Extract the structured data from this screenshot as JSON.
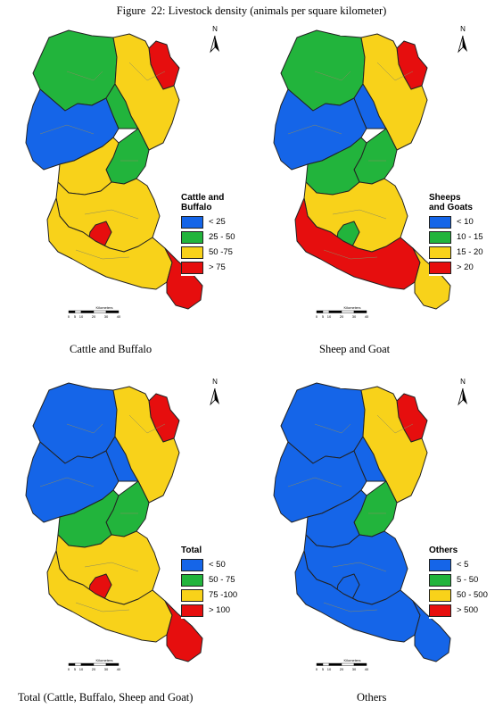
{
  "figure_title": "Figure  22: Livestock density (animals per square kilometer)",
  "colors": {
    "blue": "#1565e8",
    "green": "#22b43c",
    "yellow": "#f8d21a",
    "red": "#e60e0e",
    "outline": "#222222",
    "inner": "#8a8a60"
  },
  "north_label": "N",
  "scale": {
    "unit_label": "Kilometers",
    "ticks": [
      "0",
      "5",
      "10",
      "20",
      "30",
      "40"
    ]
  },
  "panels": [
    {
      "caption": "Cattle and Buffalo",
      "legend": {
        "title": "Cattle and Buffalo",
        "items": [
          {
            "label": "< 25",
            "color": "blue"
          },
          {
            "label": "25 - 50",
            "color": "green"
          },
          {
            "label": "50 -75",
            "color": "yellow"
          },
          {
            "label": "> 75",
            "color": "red"
          }
        ]
      },
      "regions": [
        "green",
        "red",
        "blue",
        "green",
        "yellow",
        "green",
        "yellow",
        "yellow",
        "red",
        "yellow",
        "red"
      ]
    },
    {
      "caption": "Sheep and Goat",
      "legend": {
        "title": "Sheeps and Goats",
        "items": [
          {
            "label": "< 10",
            "color": "blue"
          },
          {
            "label": "10 - 15",
            "color": "green"
          },
          {
            "label": "15 - 20",
            "color": "yellow"
          },
          {
            "label": "> 20",
            "color": "red"
          }
        ]
      },
      "regions": [
        "green",
        "red",
        "blue",
        "blue",
        "yellow",
        "green",
        "green",
        "yellow",
        "green",
        "red",
        "yellow"
      ]
    },
    {
      "caption": "Total (Cattle, Buffalo, Sheep and Goat)",
      "legend": {
        "title": "Total",
        "items": [
          {
            "label": "< 50",
            "color": "blue"
          },
          {
            "label": "50 - 75",
            "color": "green"
          },
          {
            "label": "75 -100",
            "color": "yellow"
          },
          {
            "label": "> 100",
            "color": "red"
          }
        ]
      },
      "regions": [
        "blue",
        "red",
        "blue",
        "blue",
        "yellow",
        "green",
        "green",
        "yellow",
        "red",
        "yellow",
        "red"
      ]
    },
    {
      "caption": "Others",
      "legend": {
        "title": "Others",
        "items": [
          {
            "label": "< 5",
            "color": "blue"
          },
          {
            "label": "5 - 50",
            "color": "green"
          },
          {
            "label": "50 - 500",
            "color": "yellow"
          },
          {
            "label": "> 500",
            "color": "red"
          }
        ]
      },
      "regions": [
        "blue",
        "red",
        "blue",
        "blue",
        "yellow",
        "green",
        "blue",
        "blue",
        "blue",
        "blue",
        "blue"
      ]
    }
  ]
}
